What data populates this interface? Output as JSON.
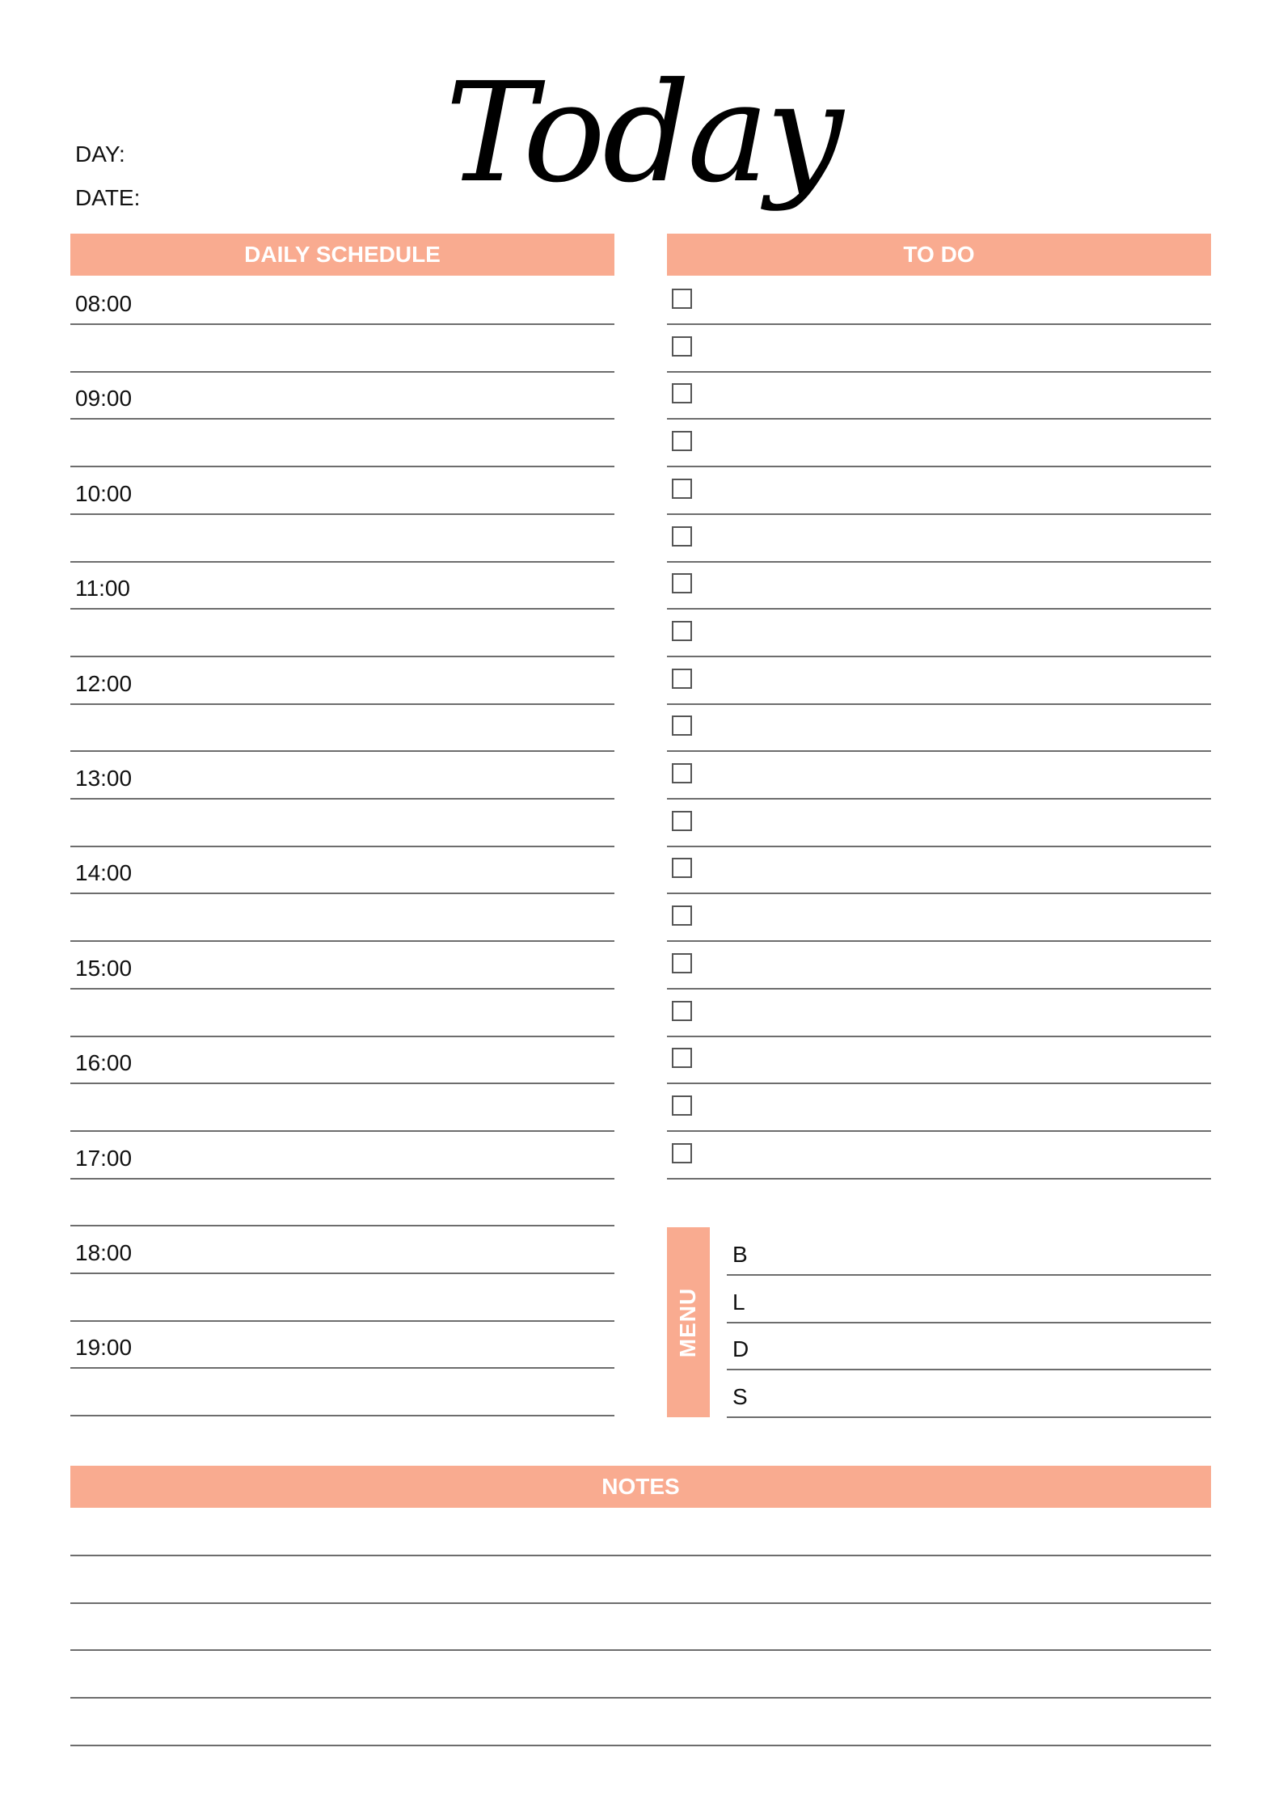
{
  "header": {
    "title": "Today",
    "day_label": "DAY:",
    "date_label": "DATE:"
  },
  "schedule": {
    "title": "DAILY SCHEDULE",
    "times": [
      "08:00",
      "09:00",
      "10:00",
      "11:00",
      "12:00",
      "13:00",
      "14:00",
      "15:00",
      "16:00",
      "17:00",
      "18:00",
      "19:00"
    ]
  },
  "todo": {
    "title": "TO DO",
    "item_count": 19
  },
  "menu": {
    "title": "MENU",
    "meals": [
      "B",
      "L",
      "D",
      "S"
    ]
  },
  "notes": {
    "title": "NOTES",
    "line_count": 5
  },
  "colors": {
    "accent": "#f9ab90",
    "rule": "#6d6d6d"
  }
}
